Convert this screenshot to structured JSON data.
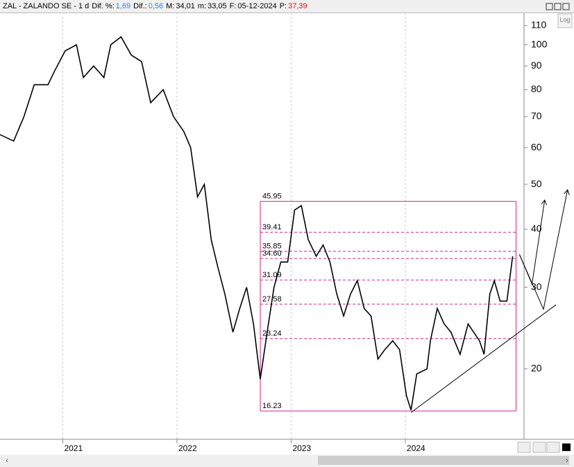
{
  "header": {
    "title": "ZAL - ZALANDO SE - 1 d",
    "stats": [
      {
        "label": "Dif. %:",
        "value": "1,69",
        "color": "#3a7fd5"
      },
      {
        "label": "Dif.:",
        "value": "0,56",
        "color": "#3a7fd5"
      },
      {
        "label": "M:",
        "value": "34,01",
        "color": "#000000"
      },
      {
        "label": "m:",
        "value": "33,05",
        "color": "#000000"
      },
      {
        "label": "F:",
        "value": "05-12-2024",
        "color": "#000000"
      },
      {
        "label": "P:",
        "value": "37,39",
        "color": "#e01010"
      }
    ],
    "log_button": "Log"
  },
  "chart_data": {
    "type": "line",
    "log_scale": true,
    "color": "#000000",
    "x": [
      2020.45,
      2020.57,
      2020.66,
      2020.75,
      2020.87,
      2020.93,
      2021.02,
      2021.12,
      2021.18,
      2021.27,
      2021.36,
      2021.42,
      2021.51,
      2021.6,
      2021.69,
      2021.77,
      2021.88,
      2021.97,
      2022.06,
      2022.12,
      2022.18,
      2022.24,
      2022.3,
      2022.36,
      2022.42,
      2022.49,
      2022.55,
      2022.61,
      2022.67,
      2022.73,
      2022.79,
      2022.85,
      2022.91,
      2022.97,
      2023.03,
      2023.09,
      2023.15,
      2023.22,
      2023.28,
      2023.34,
      2023.4,
      2023.46,
      2023.52,
      2023.58,
      2023.64,
      2023.7,
      2023.76,
      2023.82,
      2023.89,
      2023.95,
      2024.01,
      2024.05,
      2024.1,
      2024.19,
      2024.22,
      2024.28,
      2024.34,
      2024.4,
      2024.48,
      2024.55,
      2024.65,
      2024.69,
      2024.74,
      2024.78,
      2024.83,
      2024.89,
      2024.94
    ],
    "values": [
      64,
      62,
      70,
      82,
      82,
      88,
      97,
      100,
      85,
      90,
      85,
      100,
      104,
      95,
      92,
      75,
      80,
      70,
      65,
      60,
      47,
      50,
      38,
      33,
      29,
      24,
      27,
      30,
      25,
      19,
      24,
      30,
      34,
      34,
      44,
      45,
      38,
      35,
      37,
      34,
      29,
      26,
      29,
      31,
      27,
      26,
      21,
      22,
      23,
      22,
      17.5,
      16.3,
      19.5,
      20,
      23,
      27,
      25,
      24,
      21.5,
      25,
      23,
      21.5,
      29,
      31,
      28,
      28,
      35
    ],
    "xlim": [
      2020.45,
      2025.04
    ],
    "ylim": [
      14.1,
      117.4
    ],
    "xticks": [
      2021,
      2022,
      2023,
      2024
    ],
    "yticks": [
      20,
      30,
      40,
      50,
      60,
      70,
      80,
      90,
      100,
      110
    ],
    "grid": true,
    "fib_color": "#d0218a",
    "fib_x": [
      2022.73,
      2024.97
    ],
    "fib_levels": [
      {
        "value": 45.95,
        "label": "45.95"
      },
      {
        "value": 39.41,
        "label": "39.41"
      },
      {
        "value": 35.85,
        "label": "35.85"
      },
      {
        "value": 34.6,
        "label": "34.60"
      },
      {
        "value": 31.09,
        "label": "31.09"
      },
      {
        "value": 27.58,
        "label": "27.58"
      },
      {
        "value": 23.24,
        "label": "23.24"
      },
      {
        "value": 16.23,
        "label": "16.23"
      }
    ],
    "trendline": {
      "x": [
        2024.05,
        2025.32
      ],
      "values": [
        16.1,
        27.5
      ]
    },
    "projections": [
      {
        "x": [
          2025.0,
          2025.11,
          2025.22
        ],
        "values": [
          35.3,
          30.5,
          46.1
        ]
      },
      {
        "x": [
          2025.0,
          2025.21,
          2025.42
        ],
        "values": [
          35.3,
          26.9,
          48.5
        ]
      }
    ]
  }
}
